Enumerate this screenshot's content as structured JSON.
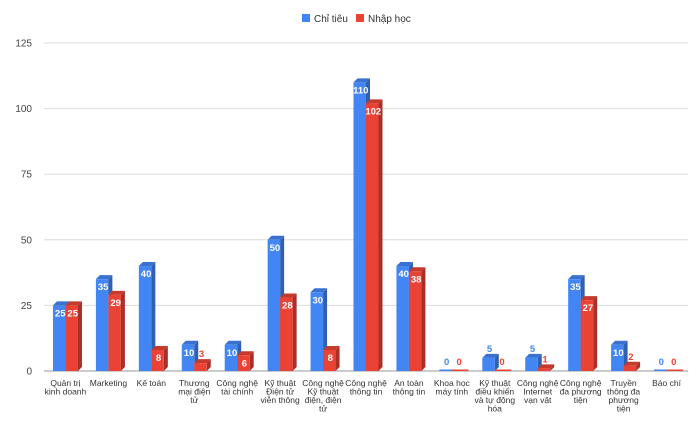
{
  "chart_data": {
    "type": "bar",
    "title": "",
    "xlabel": "",
    "ylabel": "",
    "ylim": [
      0,
      125
    ],
    "yticks": [
      0,
      25,
      50,
      75,
      100,
      125
    ],
    "grid": true,
    "legend_position": "top-center",
    "categories": [
      [
        "Quản trị",
        "kinh doanh"
      ],
      [
        "Marketing"
      ],
      [
        "Kế toán"
      ],
      [
        "Thương",
        "mại điện",
        "tử"
      ],
      [
        "Công nghệ",
        "tài chính"
      ],
      [
        "Kỹ thuật",
        "Điện tử",
        "viễn thông"
      ],
      [
        "Công nghệ",
        "Kỹ thuật",
        "điện, điện",
        "tử"
      ],
      [
        "Công nghệ",
        "thông tin"
      ],
      [
        "An toàn",
        "thông tin"
      ],
      [
        "Khoa học",
        "máy tính"
      ],
      [
        "Kỹ thuật",
        "điều khiển",
        "và tự động",
        "hóa"
      ],
      [
        "Công nghệ",
        "Internet",
        "vạn vật"
      ],
      [
        "Công nghệ",
        "đa phương",
        "tiện"
      ],
      [
        "Truyền",
        "thông đa",
        "phương",
        "tiện"
      ],
      [
        "Báo chí"
      ]
    ],
    "series": [
      {
        "name": "Chỉ tiêu",
        "color": "#4285f4",
        "values": [
          25,
          35,
          40,
          10,
          10,
          50,
          30,
          110,
          40,
          0,
          5,
          5,
          35,
          10,
          0
        ]
      },
      {
        "name": "Nhập học",
        "color": "#ea4335",
        "values": [
          25,
          29,
          8,
          3,
          6,
          28,
          8,
          102,
          38,
          0,
          0,
          1,
          27,
          2,
          0
        ]
      }
    ]
  }
}
